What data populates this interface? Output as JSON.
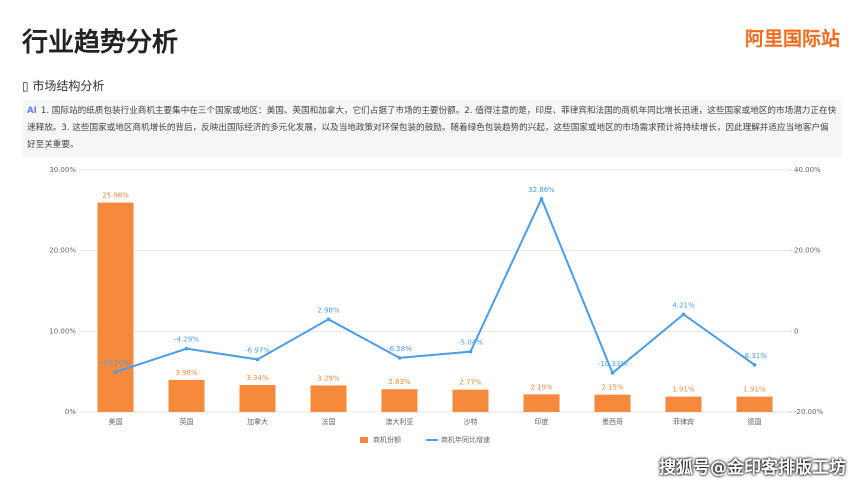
{
  "header": {
    "title": "行业趋势分析",
    "logo": "阿里国际站"
  },
  "section": {
    "title": "市场结构分析",
    "badge": "AI",
    "summary": "1. 国际站的纸质包装行业商机主要集中在三个国家或地区：美国、英国和加拿大，它们占据了市场的主要份额。2. 值得注意的是，印度、菲律宾和法国的商机年同比增长迅速，这些国家或地区的市场潜力正在快速释放。3. 这些国家或地区商机增长的背后，反映出国际经济的多元化发展，以及当地政策对环保包装的鼓励。随着绿色包装趋势的兴起，这些国家或地区的市场需求预计将持续增长，因此理解并适应当地客户偏好至关重要。"
  },
  "footer": "搜狐号@金印客排版工坊",
  "chart_data": {
    "type": "bar-line",
    "categories": [
      "美国",
      "英国",
      "加拿大",
      "法国",
      "澳大利亚",
      "沙特",
      "印度",
      "墨西哥",
      "菲律宾",
      "德国"
    ],
    "series": [
      {
        "name": "商机份额",
        "type": "bar",
        "color": "#f58a3c",
        "values": [
          25.96,
          3.98,
          3.34,
          3.29,
          2.83,
          2.77,
          2.19,
          2.15,
          1.91,
          1.91
        ],
        "value_labels": [
          "25.96%",
          "3.98%",
          "3.34%",
          "3.29%",
          "2.83%",
          "2.77%",
          "2.19%",
          "2.15%",
          "1.91%",
          "1.91%"
        ]
      },
      {
        "name": "商机年同比增速",
        "type": "line",
        "axis": "y2",
        "color": "#4c9de8",
        "values": [
          -10.1,
          -4.29,
          -6.97,
          2.98,
          -6.58,
          -5.04,
          32.86,
          -10.33,
          4.21,
          -8.31
        ],
        "value_labels": [
          "-10.10%",
          "-4.29%",
          "-6.97%",
          "2.98%",
          "-6.58%",
          "-5.04%",
          "32.86%",
          "-10.33%",
          "4.21%",
          "-8.31%"
        ]
      }
    ],
    "ylim": [
      0,
      30
    ],
    "yticks": [
      {
        "value": 0,
        "label": "0%"
      },
      {
        "value": 10,
        "label": "10.00%"
      },
      {
        "value": 20,
        "label": "20.00%"
      },
      {
        "value": 30,
        "label": "30.00%"
      }
    ],
    "y2lim": [
      -20,
      40
    ],
    "y2ticks": [
      {
        "value": -20,
        "label": "-20.00%"
      },
      0,
      {
        "value": 20,
        "label": "20.00%"
      },
      {
        "value": 40,
        "label": "40.00%"
      }
    ],
    "grid": true,
    "legend": "bottom"
  }
}
